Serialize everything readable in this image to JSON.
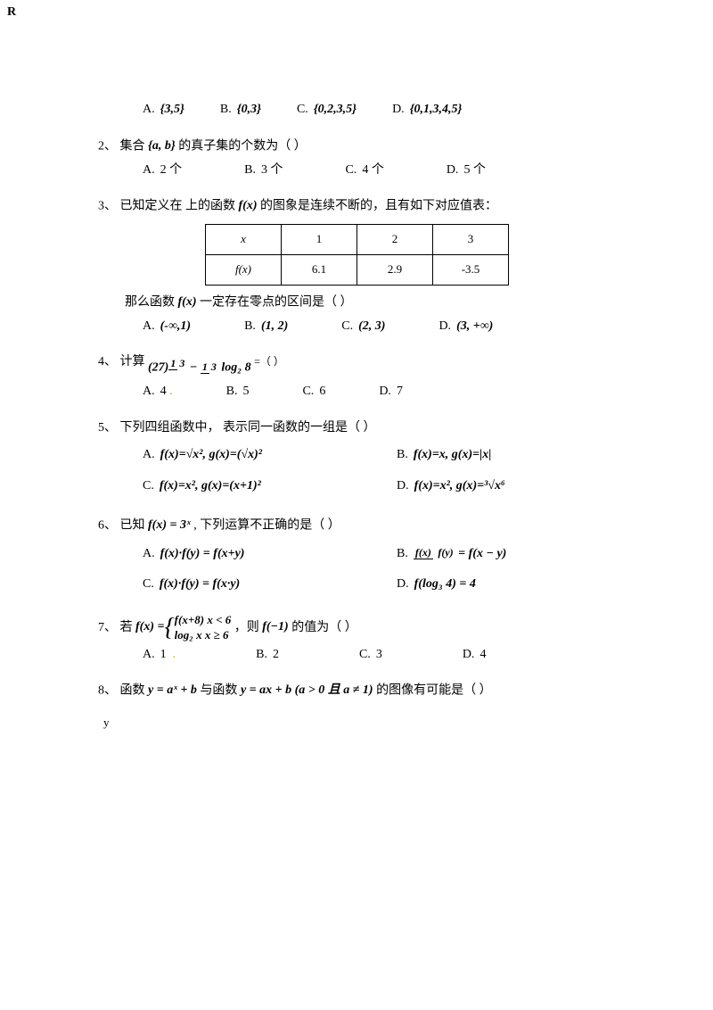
{
  "corner": "R",
  "q1": {
    "opts": {
      "a_label": "A.",
      "a_math": "{3,5}",
      "b_label": "B.",
      "b_math": "{0,3}",
      "c_label": "C.",
      "c_math": "{0,2,3,5}",
      "d_label": "D.",
      "d_math": "{0,1,3,4,5}"
    }
  },
  "q2": {
    "num": "2、",
    "text_a": "集合",
    "math": "{a, b}",
    "text_b": "的真子集的个数为（      ）",
    "opts": {
      "a_label": "A.",
      "a_text": "2 个",
      "b_label": "B.",
      "b_text": "3 个",
      "c_label": "C.",
      "c_text": "4 个",
      "d_label": "D.",
      "d_text": "5 个"
    }
  },
  "q3": {
    "num": "3、",
    "text_a": "已知定义在   上的函数",
    "math_fx": "f(x)",
    "text_b": "的图象是连续不断的，且有如下对应值表：",
    "table": {
      "h1": "x",
      "h2": "1",
      "h3": "2",
      "h4": "3",
      "r1": "f(x)",
      "r2": "6.1",
      "r3": "2.9",
      "r4": "-3.5"
    },
    "text_c": "那么函数",
    "text_d": "一定存在零点的区间是（    ）",
    "opts": {
      "a_label": "A.",
      "a_math": "(-∞,1)",
      "b_label": "B.",
      "b_math": "(1, 2)",
      "c_label": "C.",
      "c_math": "(2, 3)",
      "d_label": "D.",
      "d_math": "(3, +∞)"
    }
  },
  "q4": {
    "num": "4、",
    "text_a": "计算",
    "expr_left": "(27)",
    "expr_pow_num": "1",
    "expr_pow_den": "3",
    "expr_mid": "−",
    "expr_frac_num": "1",
    "expr_frac_den": "3",
    "expr_log": "log₂ 8",
    "text_b": "=（    ）",
    "opts": {
      "a_label": "A.",
      "a_text": "4",
      "b_label": "B.",
      "b_text": "5",
      "c_label": "C.",
      "c_text": "6",
      "d_label": "D.",
      "d_text": "7"
    }
  },
  "q5": {
    "num": "5、",
    "text": "下列四组函数中， 表示同一函数的一组是（       ）",
    "opts": {
      "a_label": "A.",
      "a_math": "f(x)=√x², g(x)=(√x)²",
      "b_label": "B.",
      "b_math": "f(x)=x, g(x)=|x|",
      "c_label": "C.",
      "c_math": "f(x)=x², g(x)=(x+1)²",
      "d_label": "D.",
      "d_math": "f(x)=x², g(x)=³√x⁶"
    }
  },
  "q6": {
    "num": "6、",
    "text_a": "已知",
    "math_fx": "f(x) = 3ˣ",
    "text_b": ", 下列运算不正确的是（       ）",
    "opts": {
      "a_label": "A.",
      "a_math": "f(x)·f(y) = f(x+y)",
      "b_label": "B.",
      "b_frac_num": "f(x)",
      "b_frac_den": "f(y)",
      "b_rest": " = f(x − y)",
      "c_label": "C.",
      "c_math": "f(x)·f(y) = f(x·y)",
      "d_label": "D.",
      "d_math": "f(log₃ 4) = 4"
    }
  },
  "q7": {
    "num": "7、",
    "text_a": "若",
    "piece_left": "f(x) =",
    "piece1": "f(x+8)    x < 6",
    "piece2": "log₂ x      x ≥ 6",
    "text_b": "，则",
    "math_f1": "f(−1)",
    "text_c": "的值为（          ）",
    "opts": {
      "a_label": "A.",
      "a_text": "1",
      "b_label": "B.",
      "b_text": "2",
      "c_label": "C.",
      "c_text": "3",
      "d_label": "D.",
      "d_text": "4"
    }
  },
  "q8": {
    "num": "8、",
    "text_a": "函数",
    "math1": "y = aˣ + b",
    "text_b": "与函数",
    "math2": "y = ax + b (a > 0 且 a ≠ 1)",
    "text_c": "的图像有可能是（       ）",
    "axis": "y"
  }
}
